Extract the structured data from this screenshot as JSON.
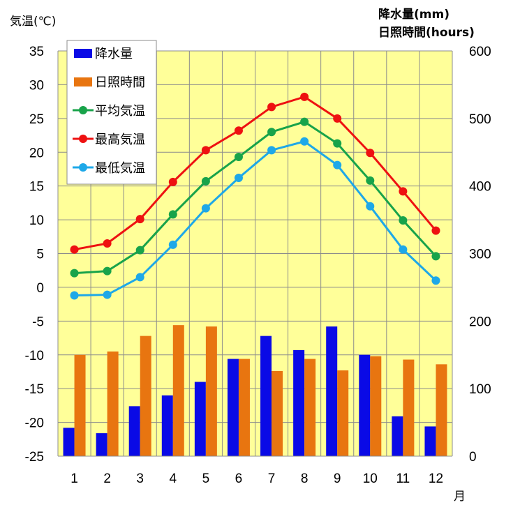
{
  "chart_data": {
    "type": "bar+line",
    "left_axis_label": "気温(℃)",
    "right_axis_label_line1": "降水量(mm)",
    "right_axis_label_line2": "日照時間(hours)",
    "x_axis_unit": "月",
    "categories": [
      "1",
      "2",
      "3",
      "4",
      "5",
      "6",
      "7",
      "8",
      "9",
      "10",
      "11",
      "12"
    ],
    "left_ylim": [
      -25,
      35
    ],
    "left_ticks": [
      35,
      30,
      25,
      20,
      15,
      10,
      5,
      0,
      -5,
      -10,
      -15,
      -20,
      -25
    ],
    "right_ylim": [
      0,
      600
    ],
    "right_ticks": [
      600,
      500,
      400,
      300,
      200,
      100,
      0
    ],
    "grid": true,
    "legend_position": "top-left",
    "bar_series": [
      {
        "name": "降水量",
        "color": "#0a0ae6",
        "axis": "right",
        "values": [
          42,
          34,
          74,
          90,
          110,
          144,
          178,
          157,
          192,
          150,
          59,
          44
        ]
      },
      {
        "name": "日照時間",
        "color": "#e87510",
        "axis": "right",
        "values": [
          150,
          155,
          178,
          194,
          192,
          144,
          126,
          144,
          127,
          148,
          143,
          136
        ]
      }
    ],
    "line_series": [
      {
        "name": "平均気温",
        "color": "#18a34a",
        "axis": "left",
        "values": [
          2.1,
          2.4,
          5.5,
          10.8,
          15.7,
          19.3,
          23.0,
          24.5,
          21.3,
          15.8,
          9.9,
          4.6
        ]
      },
      {
        "name": "最高気温",
        "color": "#ee1111",
        "axis": "left",
        "values": [
          5.6,
          6.5,
          10.1,
          15.6,
          20.3,
          23.2,
          26.7,
          28.2,
          25.0,
          19.9,
          14.2,
          8.4
        ]
      },
      {
        "name": "最低気温",
        "color": "#1ea8e8",
        "axis": "left",
        "values": [
          -1.2,
          -1.1,
          1.5,
          6.3,
          11.7,
          16.2,
          20.3,
          21.6,
          18.1,
          12.0,
          5.6,
          1.0
        ]
      }
    ],
    "legend_order": [
      "降水量",
      "日照時間",
      "平均気温",
      "最高気温",
      "最低気温"
    ],
    "plot_background": "#ffff99"
  }
}
